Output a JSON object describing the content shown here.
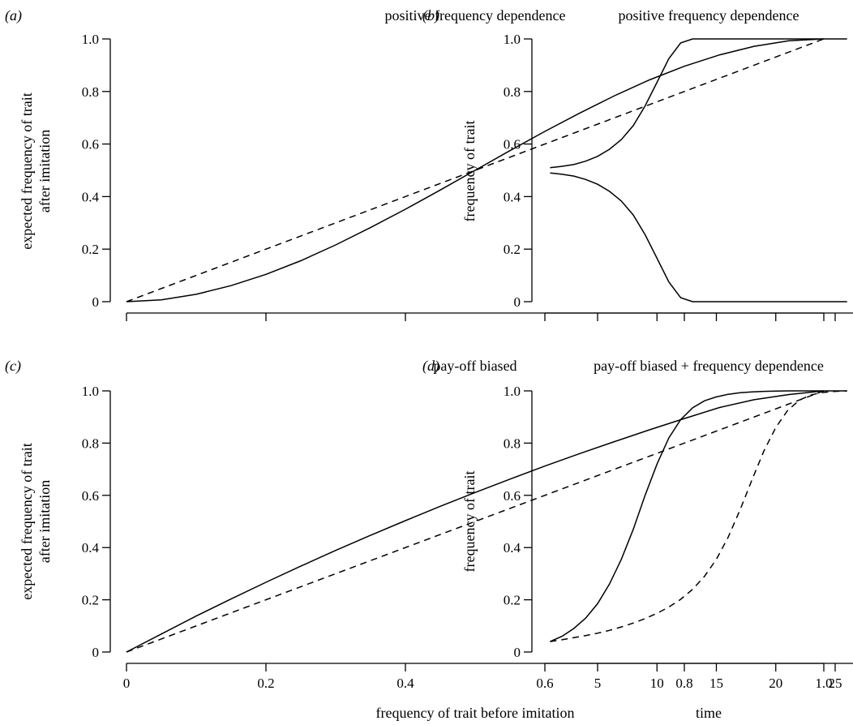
{
  "chart_data": [
    {
      "panel": "(a)",
      "type": "line",
      "title": "positive frequency dependence",
      "xlabel": "",
      "ylabel": [
        "expected frequency of trait",
        "after imitation"
      ],
      "xlim": [
        0,
        1
      ],
      "ylim": [
        0,
        1
      ],
      "xticks": [
        0,
        0.2,
        0.4,
        0.6,
        0.8,
        1.0
      ],
      "xtick_labels": [],
      "yticks": [
        0,
        0.2,
        0.4,
        0.6,
        0.8,
        1.0
      ],
      "ytick_labels": [
        "0",
        "0.2",
        "0.4",
        "0.6",
        "0.8",
        "1.0"
      ],
      "grid": false,
      "series": [
        {
          "style": "solid",
          "x": [
            0,
            0.05,
            0.1,
            0.15,
            0.2,
            0.25,
            0.3,
            0.35,
            0.4,
            0.45,
            0.5,
            0.55,
            0.6,
            0.65,
            0.7,
            0.75,
            0.8,
            0.85,
            0.9,
            0.95,
            1.0
          ],
          "y": [
            0,
            0.007,
            0.028,
            0.061,
            0.104,
            0.156,
            0.216,
            0.282,
            0.352,
            0.425,
            0.5,
            0.575,
            0.648,
            0.718,
            0.784,
            0.844,
            0.896,
            0.939,
            0.972,
            0.993,
            1.0
          ]
        },
        {
          "style": "dashed",
          "x": [
            0,
            1
          ],
          "y": [
            0,
            1
          ]
        }
      ]
    },
    {
      "panel": "(b)",
      "type": "line",
      "title": "positive frequency dependence",
      "xlabel": "",
      "ylabel": [
        "frequency of trait"
      ],
      "xlim": [
        0,
        26
      ],
      "ylim": [
        0,
        1
      ],
      "xticks": [
        5,
        10,
        15,
        20,
        25
      ],
      "xtick_labels": [],
      "yticks": [
        0,
        0.2,
        0.4,
        0.6,
        0.8,
        1.0
      ],
      "ytick_labels": [
        "0",
        "0.2",
        "0.4",
        "0.6",
        "0.8",
        "1.0"
      ],
      "grid": false,
      "series": [
        {
          "style": "solid",
          "x": [
            1,
            2,
            3,
            4,
            5,
            6,
            7,
            8,
            9,
            10,
            11,
            12,
            13,
            14,
            15,
            16,
            17,
            18,
            19,
            20,
            21,
            22,
            23,
            24,
            25,
            26
          ],
          "y": [
            0.51,
            0.515,
            0.522,
            0.535,
            0.553,
            0.58,
            0.617,
            0.67,
            0.745,
            0.835,
            0.925,
            0.985,
            1.0,
            1.0,
            1.0,
            1.0,
            1.0,
            1.0,
            1.0,
            1.0,
            1.0,
            1.0,
            1.0,
            1.0,
            1.0,
            1.0
          ]
        },
        {
          "style": "solid",
          "x": [
            1,
            2,
            3,
            4,
            5,
            6,
            7,
            8,
            9,
            10,
            11,
            12,
            13,
            14,
            15,
            16,
            17,
            18,
            19,
            20,
            21,
            22,
            23,
            24,
            25,
            26
          ],
          "y": [
            0.49,
            0.485,
            0.478,
            0.465,
            0.447,
            0.42,
            0.383,
            0.33,
            0.255,
            0.165,
            0.075,
            0.015,
            0.0,
            0.0,
            0.0,
            0.0,
            0.0,
            0.0,
            0.0,
            0.0,
            0.0,
            0.0,
            0.0,
            0.0,
            0.0,
            0.0
          ]
        }
      ]
    },
    {
      "panel": "(c)",
      "type": "line",
      "title": "pay-off biased",
      "xlabel": "frequency of trait before imitation",
      "ylabel": [
        "expected frequency of trait",
        "after imitation"
      ],
      "xlim": [
        0,
        1
      ],
      "ylim": [
        0,
        1
      ],
      "xticks": [
        0,
        0.2,
        0.4,
        0.6,
        0.8,
        1.0
      ],
      "xtick_labels": [
        "0",
        "0.2",
        "0.4",
        "0.6",
        "0.8",
        "1.0"
      ],
      "yticks": [
        0,
        0.2,
        0.4,
        0.6,
        0.8,
        1.0
      ],
      "ytick_labels": [
        "0",
        "0.2",
        "0.4",
        "0.6",
        "0.8",
        "1.0"
      ],
      "grid": false,
      "series": [
        {
          "style": "solid",
          "x": [
            0,
            0.05,
            0.1,
            0.15,
            0.2,
            0.25,
            0.3,
            0.35,
            0.4,
            0.45,
            0.5,
            0.55,
            0.6,
            0.65,
            0.7,
            0.75,
            0.8,
            0.85,
            0.9,
            0.95,
            1.0
          ],
          "y": [
            0,
            0.069,
            0.138,
            0.203,
            0.267,
            0.329,
            0.389,
            0.447,
            0.503,
            0.558,
            0.611,
            0.662,
            0.712,
            0.76,
            0.806,
            0.851,
            0.894,
            0.936,
            0.966,
            0.986,
            1.0
          ]
        },
        {
          "style": "dashed",
          "x": [
            0,
            1
          ],
          "y": [
            0,
            1
          ]
        }
      ]
    },
    {
      "panel": "(d)",
      "type": "line",
      "title": "pay-off biased + frequency dependence",
      "xlabel": "time",
      "ylabel": [
        "frequency of trait"
      ],
      "xlim": [
        0,
        26
      ],
      "ylim": [
        0,
        1
      ],
      "xticks": [
        5,
        10,
        15,
        20,
        25
      ],
      "xtick_labels": [
        "5",
        "10",
        "15",
        "20",
        "25"
      ],
      "yticks": [
        0,
        0.2,
        0.4,
        0.6,
        0.8,
        1.0
      ],
      "ytick_labels": [
        "0",
        "0.2",
        "0.4",
        "0.6",
        "0.8",
        "1.0"
      ],
      "grid": false,
      "series": [
        {
          "style": "solid",
          "x": [
            1,
            2,
            3,
            4,
            5,
            6,
            7,
            8,
            9,
            10,
            11,
            12,
            13,
            14,
            15,
            16,
            17,
            18,
            19,
            20,
            21,
            22,
            23,
            24,
            25,
            26
          ],
          "y": [
            0.04,
            0.06,
            0.09,
            0.13,
            0.185,
            0.26,
            0.355,
            0.47,
            0.6,
            0.72,
            0.82,
            0.89,
            0.935,
            0.962,
            0.977,
            0.987,
            0.993,
            0.996,
            0.998,
            0.999,
            1.0,
            1.0,
            1.0,
            1.0,
            1.0,
            1.0
          ]
        },
        {
          "style": "dashed",
          "x": [
            1,
            2,
            3,
            4,
            5,
            6,
            7,
            8,
            9,
            10,
            11,
            12,
            13,
            14,
            15,
            16,
            17,
            18,
            19,
            20,
            21,
            22,
            23,
            24,
            25,
            26
          ],
          "y": [
            0.04,
            0.047,
            0.055,
            0.063,
            0.072,
            0.083,
            0.096,
            0.111,
            0.128,
            0.148,
            0.172,
            0.202,
            0.24,
            0.29,
            0.355,
            0.44,
            0.545,
            0.66,
            0.77,
            0.86,
            0.925,
            0.965,
            0.985,
            0.994,
            0.998,
            1.0
          ]
        }
      ]
    }
  ]
}
